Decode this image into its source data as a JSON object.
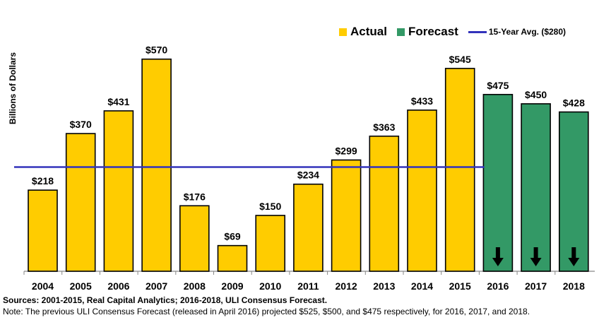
{
  "chart_data": {
    "type": "bar",
    "categories": [
      "2004",
      "2005",
      "2006",
      "2007",
      "2008",
      "2009",
      "2010",
      "2011",
      "2012",
      "2013",
      "2014",
      "2015",
      "2016",
      "2017",
      "2018"
    ],
    "values": [
      218,
      370,
      431,
      570,
      176,
      69,
      150,
      234,
      299,
      363,
      433,
      545,
      475,
      450,
      428
    ],
    "data_labels": [
      "$218",
      "$370",
      "$431",
      "$570",
      "$176",
      "$69",
      "$150",
      "$234",
      "$299",
      "$363",
      "$433",
      "$545",
      "$475",
      "$450",
      "$428"
    ],
    "series_kind": [
      "Actual",
      "Actual",
      "Actual",
      "Actual",
      "Actual",
      "Actual",
      "Actual",
      "Actual",
      "Actual",
      "Actual",
      "Actual",
      "Actual",
      "Forecast",
      "Forecast",
      "Forecast"
    ],
    "down_arrow_years": [
      "2016",
      "2017",
      "2018"
    ],
    "average_line": {
      "label": "15-Year Avg. ($280)",
      "value": 280,
      "from": "2004",
      "to": "2015"
    },
    "ylabel": "Billions of Dollars",
    "xlabel": "",
    "ylim": [
      0,
      615
    ],
    "grid": false,
    "legend": {
      "placement": "top-right",
      "items": [
        {
          "label": "Actual",
          "color": "#ffcc00"
        },
        {
          "label": "Forecast",
          "color": "#339966"
        },
        {
          "label": "15-Year Avg. ($280)",
          "color": "#3333bb"
        }
      ]
    }
  },
  "footer": {
    "sources": "Sources: 2001-2015, Real Capital Analytics; 2016-2018, ULI Consensus Forecast.",
    "note": "Note: The previous ULI Consensus Forecast (released in April 2016) projected $525, $500, and $475 respectively, for 2016, 2017, and 2018."
  },
  "colors": {
    "actual": "#ffcc00",
    "forecast": "#339966",
    "avg_line": "#3333bb",
    "bar_outline": "#000000"
  }
}
